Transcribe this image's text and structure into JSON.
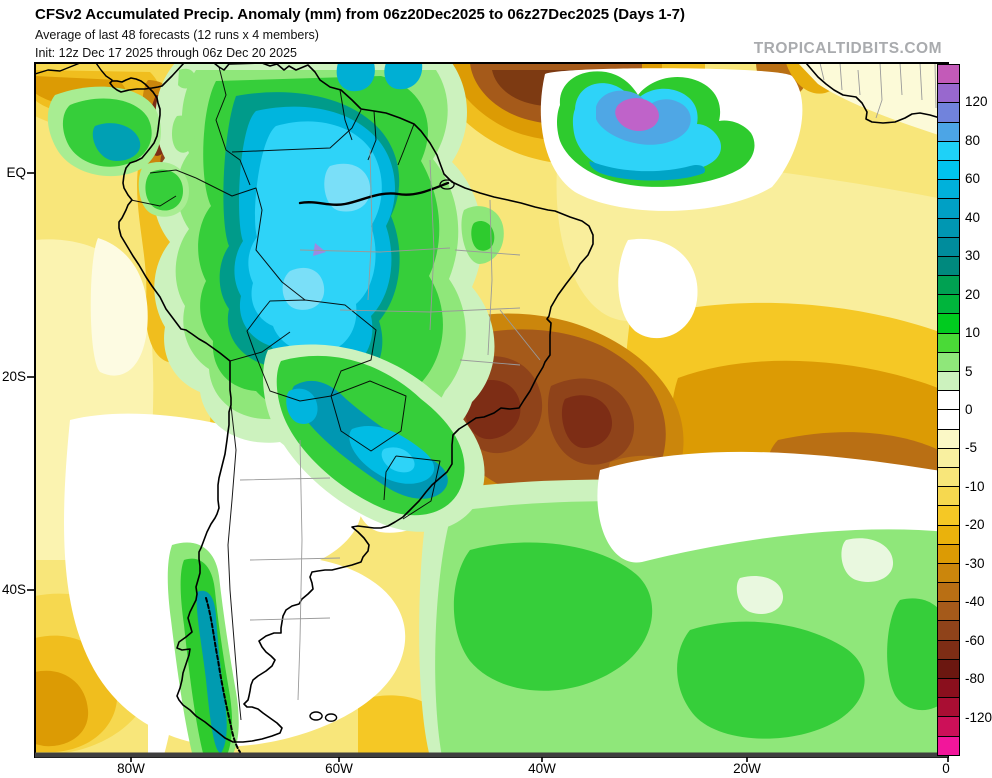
{
  "header": {
    "title": "CFSv2 Accumulated Precip. Anomaly (mm) from 06z20Dec2025 to 06z27Dec2025 (Days 1-7)",
    "subtitle": "Average of last 48 forecasts (12 runs x 4 members)",
    "init_line": "Init: 12z Dec 17 2025 through 06z Dec 20 2025",
    "watermark": "TROPICALTIDBITS.COM"
  },
  "axes": {
    "y_ticks": [
      {
        "label": "EQ"
      },
      {
        "label": "20S"
      },
      {
        "label": "40S"
      }
    ],
    "x_ticks": [
      {
        "label": "80W"
      },
      {
        "label": "60W"
      },
      {
        "label": "40W"
      },
      {
        "label": "20W"
      },
      {
        "label": "0"
      }
    ]
  },
  "colorbar": {
    "units": "mm",
    "segments": [
      "#C35AB8",
      "#9868CE",
      "#7183DC",
      "#4CA5E6",
      "#1ED1F8",
      "#00C3EF",
      "#00B1DB",
      "#00A0C5",
      "#0097B2",
      "#008C9C",
      "#00897E",
      "#00A152",
      "#00B53C",
      "#00CB1F",
      "#4ADA37",
      "#8FE77A",
      "#CCF2BE",
      "#FFFFFF",
      "#FFFFFF",
      "#FBF8C6",
      "#F9F0A0",
      "#F8E67A",
      "#F6D84F",
      "#F5C825",
      "#EAB20C",
      "#DC9B04",
      "#CB860C",
      "#B96F14",
      "#A55A1A",
      "#8F431A",
      "#7D2D15",
      "#6B1710",
      "#8A0F1D",
      "#A90E33",
      "#CC1058",
      "#F2169B"
    ],
    "ticks": [
      {
        "label": "120",
        "boundary_index": 2
      },
      {
        "label": "80",
        "boundary_index": 4
      },
      {
        "label": "60",
        "boundary_index": 6
      },
      {
        "label": "40",
        "boundary_index": 8
      },
      {
        "label": "30",
        "boundary_index": 10
      },
      {
        "label": "20",
        "boundary_index": 12
      },
      {
        "label": "10",
        "boundary_index": 14
      },
      {
        "label": "5",
        "boundary_index": 16
      },
      {
        "label": "0",
        "boundary_index": 18
      },
      {
        "label": "-5",
        "boundary_index": 20
      },
      {
        "label": "-10",
        "boundary_index": 22
      },
      {
        "label": "-20",
        "boundary_index": 24
      },
      {
        "label": "-30",
        "boundary_index": 26
      },
      {
        "label": "-40",
        "boundary_index": 28
      },
      {
        "label": "-60",
        "boundary_index": 30
      },
      {
        "label": "-80",
        "boundary_index": 32
      },
      {
        "label": "-120",
        "boundary_index": 34
      }
    ]
  },
  "palette": {
    "wet_extreme": "#C35AB8",
    "wet_purple": "#9868CE",
    "wet_blue": "#4CA5E6",
    "wet_cyan": "#1ED1F8",
    "wet_teal": "#0097B2",
    "wet_green": "#00B53C",
    "wet_pale": "#CCF2BE",
    "neutral": "#FFFFFF",
    "dry_pale": "#FBF8C6",
    "dry_yellow": "#F6D84F",
    "dry_gold": "#F5C825",
    "dry_amber": "#DC9B04",
    "dry_brown": "#A55A1A",
    "dry_darkbrown": "#8F431A",
    "dry_maroon": "#6B1710",
    "dry_crimson": "#CC1058"
  },
  "chart_data": {
    "type": "heatmap",
    "title": "CFSv2 Accumulated Precip. Anomaly (mm) from 06z20Dec2025 to 06z27Dec2025 (Days 1-7)",
    "subtitle": "Average of last 48 forecasts (12 runs x 4 members)",
    "init": "Init: 12z Dec 17 2025 through 06z Dec 20 2025",
    "source_watermark": "TROPICALTIDBITS.COM",
    "units": "mm",
    "region": "South America and adjacent Atlantic / Pacific, ~11N to ~56S, ~89W to 0",
    "x_axis": {
      "label": "longitude",
      "ticks": [
        "80W",
        "60W",
        "40W",
        "20W",
        "0"
      ]
    },
    "y_axis": {
      "label": "latitude",
      "ticks": [
        "EQ",
        "20S",
        "40S"
      ]
    },
    "colorbar_levels": [
      150,
      120,
      100,
      80,
      60,
      40,
      30,
      20,
      10,
      5,
      0,
      -5,
      -10,
      -20,
      -30,
      -40,
      -60,
      -80,
      -100,
      -120,
      -150
    ],
    "colorbar_tick_labels": [
      "120",
      "80",
      "60",
      "40",
      "30",
      "20",
      "10",
      "5",
      "0",
      "-5",
      "-10",
      "-20",
      "-30",
      "-40",
      "-60",
      "-80",
      "-120"
    ],
    "legend_position": "right",
    "grid": false,
    "notable_features": [
      {
        "region": "western/central Amazon (E Peru, NW Brazil)",
        "anomaly_mm": "+40 to +100",
        "appearance": "large cyan-teal wet blob with bright cyan core"
      },
      {
        "region": "tropical N Atlantic near 30W,5N",
        "anomaly_mm": "+80 to +150",
        "appearance": "heart-shaped cyan blob with blue and purple core"
      },
      {
        "region": "SE Brazil (Minas Gerais) and adjacent SW Atlantic",
        "anomaly_mm": "-40 to -80",
        "appearance": "dark red-brown dry maximum"
      },
      {
        "region": "Paraguay to Rio Grande do Sul coast",
        "anomaly_mm": "+30 to +60",
        "appearance": "diagonal teal-cyan wet band"
      },
      {
        "region": "southern Chile coast / Andes",
        "anomaly_mm": "+20 to +40",
        "appearance": "narrow green strip with teal core"
      },
      {
        "region": "subtropical S Atlantic 35-50S",
        "anomaly_mm": "+5 to +30",
        "appearance": "broad green area"
      },
      {
        "region": "Colombian Andes and NE coast of S America",
        "anomaly_mm": "-30 to -60",
        "appearance": "brown streaks"
      },
      {
        "region": "tropical Atlantic 0-20S and SE Pacific",
        "anomaly_mm": "-5 to -30",
        "appearance": "broad yellow/gold dry field"
      },
      {
        "region": "NW tropical Atlantic band along top edge",
        "anomaly_mm": "-30 to -60",
        "appearance": "brown band"
      },
      {
        "region": "Gulf of Guinea / W Africa corner",
        "anomaly_mm": "0 to -10",
        "appearance": "pale yellow"
      }
    ]
  }
}
